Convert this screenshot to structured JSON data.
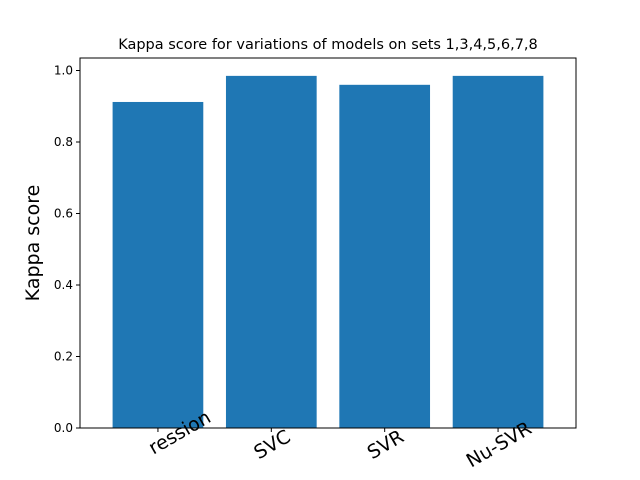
{
  "chart_data": {
    "type": "bar",
    "title": "Kappa score for variations of models on sets 1,3,4,5,6,7,8",
    "xlabel": "",
    "ylabel": "Kappa score",
    "categories": [
      "Linear Regression",
      "SVC",
      "SVR",
      "Nu-SVR"
    ],
    "visible_tick_labels": [
      "ression",
      "SVC",
      "SVR",
      "Nu-SVR"
    ],
    "values": [
      0.912,
      0.985,
      0.96,
      0.985
    ],
    "ylim": [
      0.0,
      1.035
    ],
    "yticks": [
      "0.0",
      "0.2",
      "0.4",
      "0.6",
      "0.8",
      "1.0"
    ],
    "bar_color": "#1f77b4",
    "grid": false,
    "legend": "none"
  }
}
